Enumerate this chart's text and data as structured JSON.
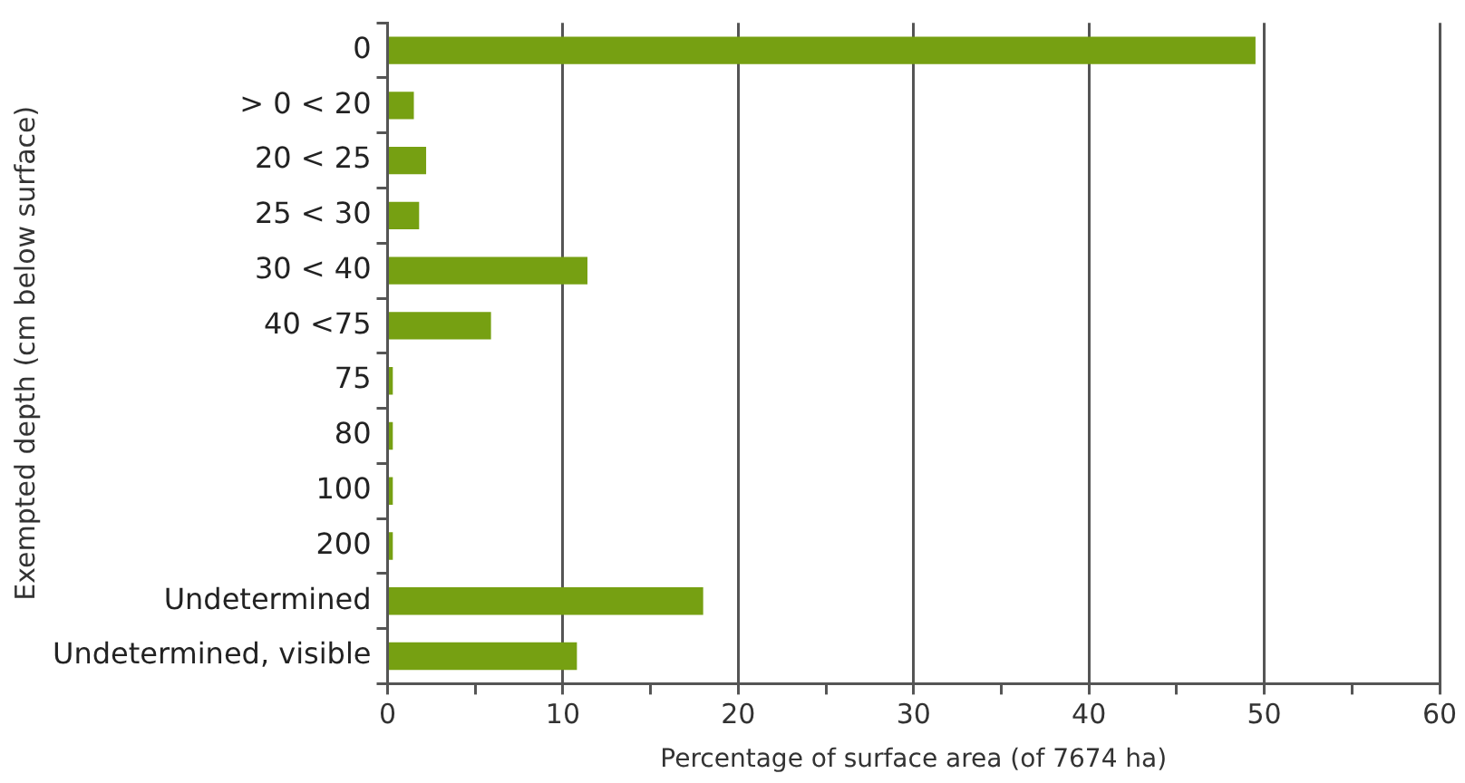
{
  "chart_data": {
    "type": "bar",
    "orientation": "horizontal",
    "xlabel": "Percentage of surface area (of 7674 ha)",
    "ylabel": "Exempted depth (cm below surface)",
    "categories": [
      "0",
      "> 0 < 20",
      "20 < 25",
      "25 < 30",
      "30 < 40",
      "40 <75",
      "75",
      "80",
      "100",
      "200",
      "Undetermined",
      "Undetermined, visible"
    ],
    "values": [
      49.5,
      1.5,
      2.2,
      1.8,
      11.4,
      5.9,
      0.3,
      0.3,
      0.3,
      0.3,
      18,
      10.8
    ],
    "color": "#76a012",
    "xlim": [
      0,
      60
    ],
    "xticks": [
      0,
      {
        "value": 5,
        "label": null
      },
      10,
      {
        "value": 15,
        "label": null
      },
      20,
      {
        "value": 25,
        "label": null
      },
      30,
      {
        "value": 35,
        "label": null
      },
      40,
      {
        "value": 45,
        "label": null
      },
      50,
      {
        "value": 55,
        "label": null
      },
      60
    ],
    "grid": "x",
    "legend": false
  }
}
